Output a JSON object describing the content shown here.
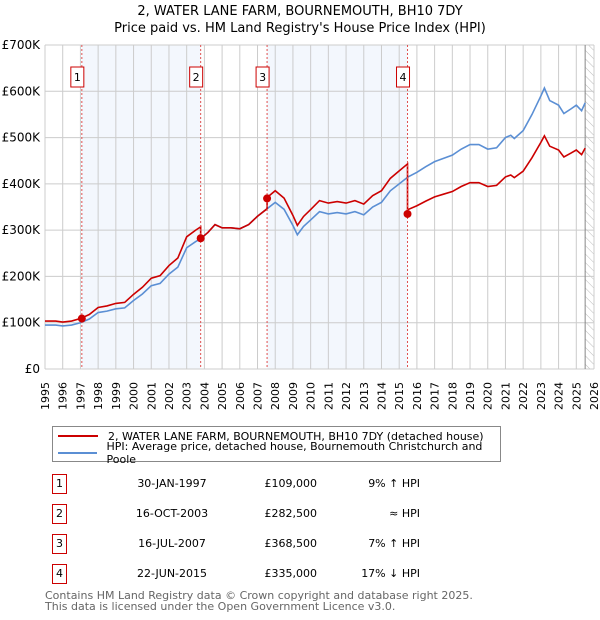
{
  "chart_data": {
    "type": "line",
    "title": "2, WATER LANE FARM, BOURNEMOUTH, BH10 7DY",
    "subtitle": "Price paid vs. HM Land Registry's House Price Index (HPI)",
    "xlim": [
      1995,
      2026
    ],
    "ylim": [
      0,
      700000
    ],
    "x_ticks": [
      "1995",
      "1996",
      "1997",
      "1998",
      "1999",
      "2000",
      "2001",
      "2002",
      "2003",
      "2004",
      "2005",
      "2006",
      "2007",
      "2008",
      "2009",
      "2010",
      "2011",
      "2012",
      "2013",
      "2014",
      "2015",
      "2016",
      "2017",
      "2018",
      "2019",
      "2020",
      "2021",
      "2022",
      "2023",
      "2024",
      "2025",
      "2026"
    ],
    "y_ticks": [
      "£0",
      "£100K",
      "£200K",
      "£300K",
      "£400K",
      "£500K",
      "£600K",
      "£700K"
    ],
    "grid": true,
    "hatch_from": 2025.5,
    "series": [
      {
        "name": "2, WATER LANE FARM, BOURNEMOUTH, BH10 7DY (detached house)",
        "color": "#cc0000",
        "segments": [
          {
            "from": 1995,
            "to": 2003.79,
            "ratio": 1.09
          },
          {
            "from": 2003.79,
            "to": 2007.54,
            "ratio": 1.0
          },
          {
            "from": 2007.54,
            "to": 2015.47,
            "ratio": 1.07
          },
          {
            "from": 2015.47,
            "to": 2025.5,
            "ratio": 0.83
          }
        ]
      },
      {
        "name": "HPI: Average price, detached house, Bournemouth Christchurch and Poole",
        "color": "#5b8fd4",
        "x": [
          1995,
          1995.6,
          1996,
          1996.5,
          1997,
          1997.5,
          1998,
          1998.5,
          1999,
          1999.5,
          2000,
          2000.5,
          2001,
          2001.5,
          2002,
          2002.5,
          2003,
          2003.5,
          2003.8,
          2004.2,
          2004.6,
          2005,
          2005.5,
          2006,
          2006.5,
          2007,
          2007.5,
          2008,
          2008.5,
          2009,
          2009.25,
          2009.6,
          2010,
          2010.5,
          2011,
          2011.5,
          2012,
          2012.5,
          2013,
          2013.5,
          2014,
          2014.5,
          2015,
          2015.5,
          2016,
          2016.5,
          2017,
          2017.5,
          2018,
          2018.5,
          2019,
          2019.5,
          2020,
          2020.5,
          2021,
          2021.3,
          2021.5,
          2022,
          2022.5,
          2023,
          2023.2,
          2023.5,
          2024,
          2024.3,
          2024.7,
          2025,
          2025.3,
          2025.5
        ],
        "values": [
          95,
          95,
          93,
          95,
          100,
          108,
          122,
          125,
          130,
          132,
          148,
          162,
          180,
          185,
          205,
          220,
          262,
          275,
          282,
          295,
          312,
          305,
          305,
          303,
          312,
          330,
          345,
          360,
          345,
          310,
          290,
          308,
          322,
          340,
          335,
          338,
          335,
          340,
          333,
          350,
          360,
          385,
          400,
          415,
          425,
          437,
          448,
          455,
          462,
          475,
          485,
          485,
          475,
          478,
          500,
          505,
          498,
          515,
          550,
          590,
          607,
          580,
          570,
          552,
          562,
          570,
          558,
          575
        ]
      }
    ],
    "sales": [
      {
        "id": "1",
        "x": 1997.08,
        "value": 109000
      },
      {
        "id": "2",
        "x": 2003.79,
        "value": 282500
      },
      {
        "id": "3",
        "x": 2007.54,
        "value": 368500
      },
      {
        "id": "4",
        "x": 2015.47,
        "value": 335000
      }
    ]
  },
  "legend": {
    "property": "2, WATER LANE FARM, BOURNEMOUTH, BH10 7DY (detached house)",
    "hpi": "HPI: Average price, detached house, Bournemouth Christchurch and Poole"
  },
  "transactions": [
    {
      "num": "1",
      "date": "30-JAN-1997",
      "price": "£109,000",
      "hpi": "9% ↑ HPI"
    },
    {
      "num": "2",
      "date": "16-OCT-2003",
      "price": "£282,500",
      "hpi": "≈ HPI"
    },
    {
      "num": "3",
      "date": "16-JUL-2007",
      "price": "£368,500",
      "hpi": "7% ↑ HPI"
    },
    {
      "num": "4",
      "date": "22-JUN-2015",
      "price": "£335,000",
      "hpi": "17% ↓ HPI"
    }
  ],
  "footer": {
    "line1": "Contains HM Land Registry data © Crown copyright and database right 2025.",
    "line2": "This data is licensed under the Open Government Licence v3.0."
  }
}
